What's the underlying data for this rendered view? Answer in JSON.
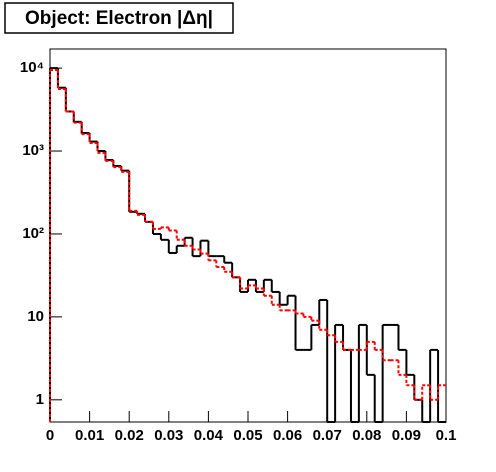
{
  "chart_data": {
    "type": "histogram",
    "title": "Object: Electron |Δη|",
    "bins": [
      0,
      0.002,
      0.004,
      0.006,
      0.008,
      0.01,
      0.012,
      0.014,
      0.016,
      0.018,
      0.02,
      0.022,
      0.024,
      0.026,
      0.028,
      0.03,
      0.032,
      0.034,
      0.036,
      0.038,
      0.04,
      0.042,
      0.044,
      0.046,
      0.048,
      0.05,
      0.052,
      0.054,
      0.056,
      0.058,
      0.06,
      0.062,
      0.064,
      0.066,
      0.068,
      0.07,
      0.072,
      0.074,
      0.076,
      0.078,
      0.08,
      0.082,
      0.084,
      0.086,
      0.088,
      0.09,
      0.092,
      0.094,
      0.096,
      0.098,
      0.1
    ],
    "series": [
      {
        "color": "#000000",
        "dashed": false,
        "values": [
          10000,
          5800,
          3000,
          2250,
          1650,
          1300,
          1000,
          780,
          660,
          580,
          185,
          175,
          140,
          100,
          85,
          59,
          72,
          90,
          54,
          83,
          54,
          54,
          45,
          30,
          20,
          28,
          20,
          28,
          20,
          14,
          18,
          4,
          4,
          8,
          16,
          0,
          8,
          4,
          0,
          8,
          2,
          0,
          8,
          8,
          4,
          2,
          1,
          0,
          4,
          0
        ]
      },
      {
        "color": "#ff0000",
        "dashed": true,
        "values": [
          9500,
          5600,
          3000,
          2200,
          1600,
          1250,
          950,
          760,
          640,
          560,
          190,
          170,
          140,
          115,
          120,
          110,
          85,
          72,
          65,
          58,
          48,
          40,
          35,
          30,
          22,
          24,
          22,
          18,
          14,
          12,
          12,
          11,
          10,
          9,
          7,
          6,
          5,
          4,
          4,
          4,
          5,
          4,
          3,
          3,
          2,
          1.5,
          1,
          1.5,
          1,
          1.5
        ]
      }
    ],
    "xlim": [
      0,
      0.1
    ],
    "xticks": [
      0,
      0.01,
      0.02,
      0.03,
      0.04,
      0.05,
      0.06,
      0.07,
      0.08,
      0.09,
      0.1
    ],
    "ylim": [
      0.54,
      17000
    ],
    "log_y": true,
    "yticks": [
      1,
      10,
      {
        "value": 100,
        "label": "10²"
      },
      {
        "value": 1000,
        "label": "10³"
      },
      {
        "value": 10000,
        "label": "10⁴"
      }
    ]
  }
}
